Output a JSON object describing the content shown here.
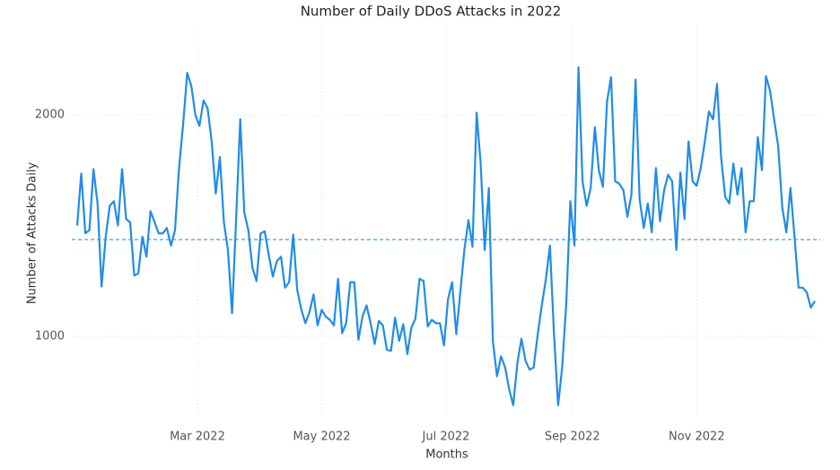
{
  "chart_data": {
    "type": "line",
    "title": "Number of Daily DDoS Attacks in 2022",
    "x_label": "Months",
    "y_label": "Number of Attacks Daily",
    "x": [
      0,
      2,
      4,
      6,
      8,
      10,
      12,
      14,
      16,
      18,
      20,
      22,
      24,
      26,
      28,
      30,
      32,
      34,
      36,
      38,
      40,
      42,
      44,
      46,
      48,
      50,
      52,
      54,
      56,
      58,
      60,
      62,
      64,
      66,
      68,
      70,
      72,
      74,
      76,
      78,
      80,
      82,
      84,
      86,
      88,
      90,
      92,
      94,
      96,
      98,
      100,
      102,
      104,
      106,
      108,
      110,
      112,
      114,
      116,
      118,
      120,
      122,
      124,
      126,
      128,
      130,
      132,
      134,
      136,
      138,
      140,
      142,
      144,
      146,
      148,
      150,
      152,
      154,
      156,
      158,
      160,
      162,
      164,
      166,
      168,
      170,
      172,
      174,
      176,
      178,
      180,
      182,
      184,
      186,
      188,
      190,
      192,
      194,
      196,
      198,
      200,
      202,
      204,
      206,
      208,
      210,
      212,
      214,
      216,
      218,
      220,
      222,
      224,
      226,
      228,
      230,
      232,
      234,
      236,
      238,
      240,
      242,
      244,
      246,
      248,
      250,
      252,
      254,
      256,
      258,
      260,
      262,
      264,
      266,
      268,
      270,
      272,
      274,
      276,
      278,
      280,
      282,
      284,
      286,
      288,
      290,
      292,
      294,
      296,
      298,
      300,
      302,
      304,
      306,
      308,
      310,
      312,
      314,
      316,
      318,
      320,
      322,
      324,
      326,
      328,
      330,
      332,
      334,
      336,
      338,
      340,
      342,
      344,
      346,
      348,
      350,
      352,
      354,
      356,
      358,
      360,
      362
    ],
    "series": [
      {
        "name": "Number of Attacks Daily",
        "color": "#1f8ceb",
        "values": [
          1500,
          1735,
          1465,
          1480,
          1755,
          1600,
          1225,
          1450,
          1590,
          1610,
          1500,
          1755,
          1530,
          1515,
          1275,
          1285,
          1450,
          1360,
          1565,
          1515,
          1465,
          1465,
          1490,
          1410,
          1480,
          1760,
          1960,
          2190,
          2130,
          2000,
          1950,
          2065,
          2030,
          1880,
          1645,
          1810,
          1515,
          1390,
          1105,
          1530,
          1980,
          1560,
          1480,
          1310,
          1250,
          1465,
          1475,
          1370,
          1270,
          1340,
          1360,
          1220,
          1245,
          1460,
          1210,
          1120,
          1060,
          1110,
          1190,
          1050,
          1120,
          1090,
          1075,
          1050,
          1260,
          1015,
          1060,
          1245,
          1245,
          985,
          1090,
          1140,
          1060,
          965,
          1070,
          1050,
          940,
          935,
          1085,
          980,
          1055,
          920,
          1040,
          1080,
          1260,
          1250,
          1045,
          1075,
          1060,
          1060,
          960,
          1170,
          1245,
          1010,
          1200,
          1390,
          1525,
          1405,
          2010,
          1780,
          1390,
          1670,
          980,
          820,
          910,
          860,
          760,
          690,
          880,
          990,
          890,
          850,
          860,
          1010,
          1140,
          1260,
          1410,
          1010,
          690,
          860,
          1150,
          1610,
          1410,
          2215,
          1700,
          1590,
          1670,
          1945,
          1750,
          1675,
          2060,
          2170,
          1700,
          1690,
          1660,
          1540,
          1640,
          2160,
          1620,
          1490,
          1600,
          1470,
          1760,
          1520,
          1660,
          1730,
          1700,
          1390,
          1740,
          1530,
          1880,
          1700,
          1680,
          1760,
          1880,
          2015,
          1980,
          2140,
          1810,
          1630,
          1600,
          1780,
          1640,
          1760,
          1470,
          1610,
          1610,
          1900,
          1750,
          2175,
          2110,
          1980,
          1860,
          1580,
          1470,
          1670,
          1450,
          1220,
          1220,
          1200,
          1130,
          1160
        ]
      }
    ],
    "reference_line": {
      "value": 1437,
      "color": "#5aaef5"
    },
    "xlim": [
      0,
      362
    ],
    "xticks": [
      {
        "value": 59,
        "label": "Mar 2022"
      },
      {
        "value": 120,
        "label": "May 2022"
      },
      {
        "value": 181,
        "label": "Jul 2022"
      },
      {
        "value": 243,
        "label": "Sep 2022"
      },
      {
        "value": 304,
        "label": "Nov 2022"
      }
    ],
    "ylim": [
      640,
      2300
    ],
    "yticks": [
      1000,
      2000
    ],
    "grid": true
  }
}
